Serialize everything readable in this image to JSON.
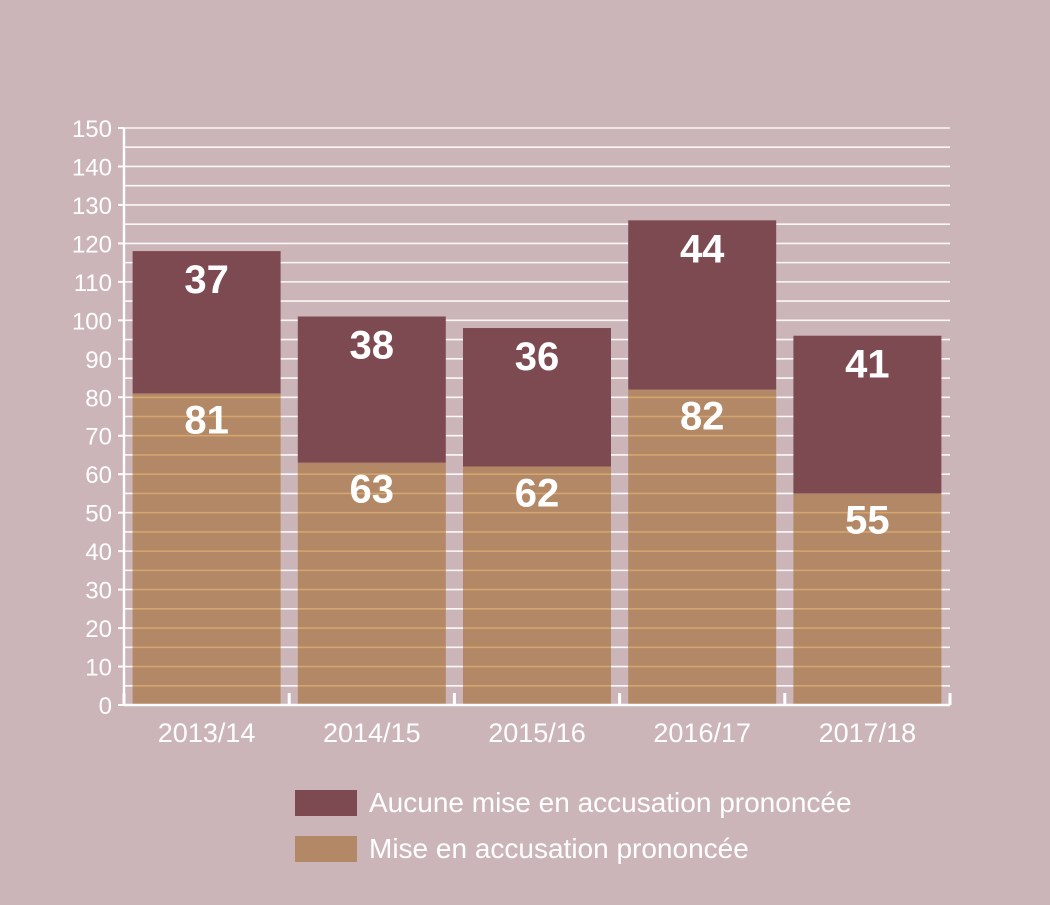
{
  "chart_data": {
    "type": "bar",
    "stacked": true,
    "categories": [
      "2013/14",
      "2014/15",
      "2015/16",
      "2016/17",
      "2017/18"
    ],
    "series": [
      {
        "name": "Mise en accusation prononcée",
        "values": [
          81,
          63,
          62,
          82,
          55
        ],
        "color": "#b38866"
      },
      {
        "name": "Aucune mise en accusation prononcée",
        "values": [
          37,
          38,
          36,
          44,
          41
        ],
        "color": "#7e4a52"
      }
    ],
    "ylim": [
      0,
      150
    ],
    "yticks": [
      0,
      10,
      20,
      30,
      40,
      50,
      60,
      70,
      80,
      90,
      100,
      110,
      120,
      130,
      140,
      150
    ],
    "grid": true,
    "legend_position": "bottom",
    "colors": {
      "background": "#ccb5b9",
      "axis": "#ffffff",
      "grid": "#ffffff",
      "bar_stripe": "#d3a56f"
    }
  },
  "legend": {
    "items": [
      {
        "label": "Aucune mise en accusation prononcée",
        "color": "#7e4a52"
      },
      {
        "label": "Mise en accusation prononcée",
        "color": "#b38866"
      }
    ]
  }
}
